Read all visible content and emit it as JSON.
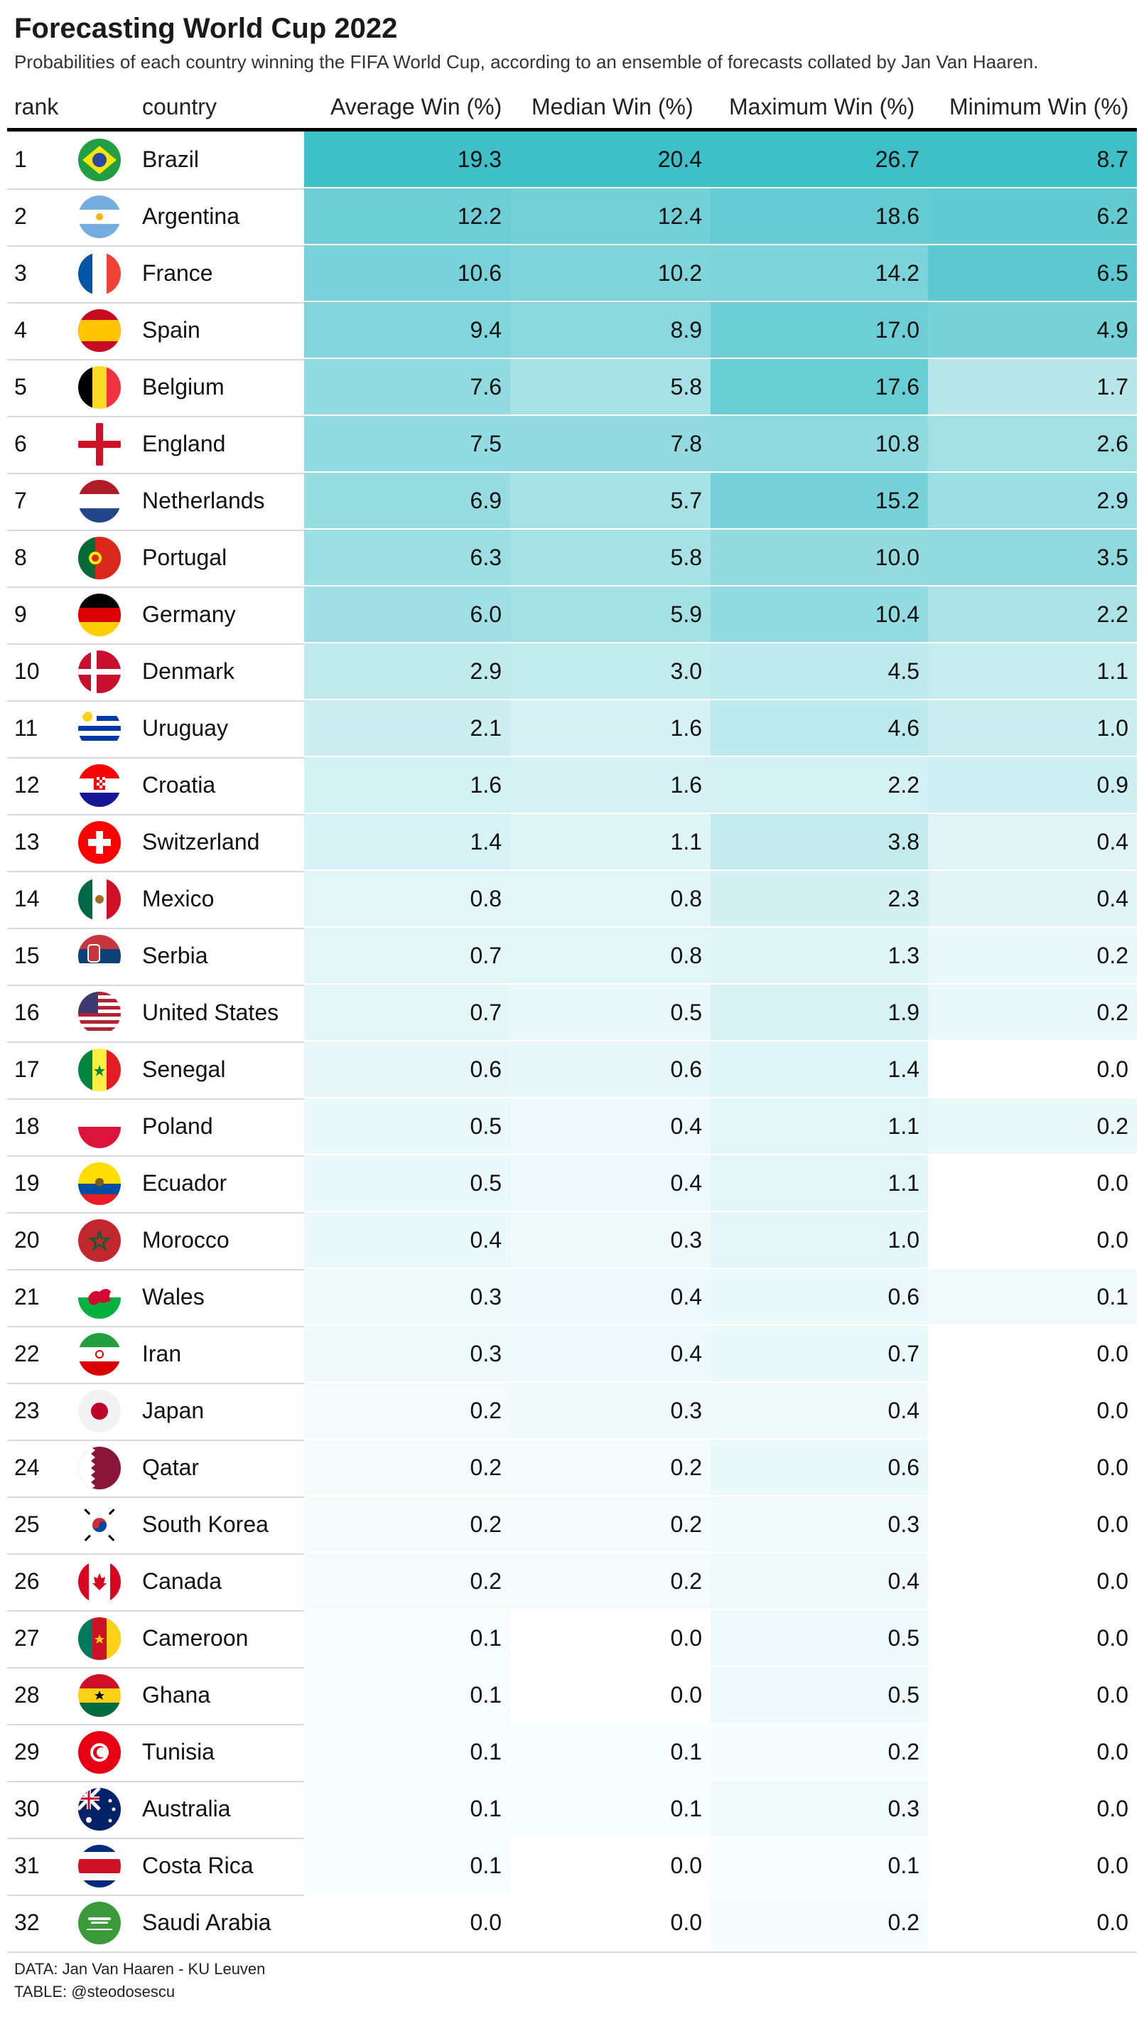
{
  "title": "Forecasting World Cup 2022",
  "subtitle": "Probabilities of each country winning the FIFA World Cup, according to an ensemble of forecasts collated by Jan Van Haaren.",
  "columns": {
    "rank": "rank",
    "country": "country",
    "avg": "Average Win (%)",
    "median": "Median Win (%)",
    "max": "Maximum Win (%)",
    "min": "Minimum Win (%)"
  },
  "footer": {
    "data": "DATA: Jan Van Haaren - KU Leuven",
    "table": "TABLE: @steodosescu"
  },
  "colors": {
    "high": "#3fbfc8",
    "low": "#ffffff",
    "rule": "#000000",
    "divider": "#d9d9d9"
  },
  "chart_data": {
    "type": "table",
    "title": "Forecasting World Cup 2022",
    "columns": [
      "rank",
      "country",
      "Average Win (%)",
      "Median Win (%)",
      "Maximum Win (%)",
      "Minimum Win (%)"
    ],
    "rows": [
      {
        "rank": "1",
        "country": "Brazil",
        "flag": "brazil-flag-icon",
        "avg": "19.3",
        "median": "20.4",
        "max": "26.7",
        "min": "8.7"
      },
      {
        "rank": "2",
        "country": "Argentina",
        "flag": "argentina-flag-icon",
        "avg": "12.2",
        "median": "12.4",
        "max": "18.6",
        "min": "6.2"
      },
      {
        "rank": "3",
        "country": "France",
        "flag": "france-flag-icon",
        "avg": "10.6",
        "median": "10.2",
        "max": "14.2",
        "min": "6.5"
      },
      {
        "rank": "4",
        "country": "Spain",
        "flag": "spain-flag-icon",
        "avg": "9.4",
        "median": "8.9",
        "max": "17.0",
        "min": "4.9"
      },
      {
        "rank": "5",
        "country": "Belgium",
        "flag": "belgium-flag-icon",
        "avg": "7.6",
        "median": "5.8",
        "max": "17.6",
        "min": "1.7"
      },
      {
        "rank": "6",
        "country": "England",
        "flag": "england-flag-icon",
        "avg": "7.5",
        "median": "7.8",
        "max": "10.8",
        "min": "2.6"
      },
      {
        "rank": "7",
        "country": "Netherlands",
        "flag": "netherlands-flag-icon",
        "avg": "6.9",
        "median": "5.7",
        "max": "15.2",
        "min": "2.9"
      },
      {
        "rank": "8",
        "country": "Portugal",
        "flag": "portugal-flag-icon",
        "avg": "6.3",
        "median": "5.8",
        "max": "10.0",
        "min": "3.5"
      },
      {
        "rank": "9",
        "country": "Germany",
        "flag": "germany-flag-icon",
        "avg": "6.0",
        "median": "5.9",
        "max": "10.4",
        "min": "2.2"
      },
      {
        "rank": "10",
        "country": "Denmark",
        "flag": "denmark-flag-icon",
        "avg": "2.9",
        "median": "3.0",
        "max": "4.5",
        "min": "1.1"
      },
      {
        "rank": "11",
        "country": "Uruguay",
        "flag": "uruguay-flag-icon",
        "avg": "2.1",
        "median": "1.6",
        "max": "4.6",
        "min": "1.0"
      },
      {
        "rank": "12",
        "country": "Croatia",
        "flag": "croatia-flag-icon",
        "avg": "1.6",
        "median": "1.6",
        "max": "2.2",
        "min": "0.9"
      },
      {
        "rank": "13",
        "country": "Switzerland",
        "flag": "switzerland-flag-icon",
        "avg": "1.4",
        "median": "1.1",
        "max": "3.8",
        "min": "0.4"
      },
      {
        "rank": "14",
        "country": "Mexico",
        "flag": "mexico-flag-icon",
        "avg": "0.8",
        "median": "0.8",
        "max": "2.3",
        "min": "0.4"
      },
      {
        "rank": "15",
        "country": "Serbia",
        "flag": "serbia-flag-icon",
        "avg": "0.7",
        "median": "0.8",
        "max": "1.3",
        "min": "0.2"
      },
      {
        "rank": "16",
        "country": "United States",
        "flag": "usa-flag-icon",
        "avg": "0.7",
        "median": "0.5",
        "max": "1.9",
        "min": "0.2"
      },
      {
        "rank": "17",
        "country": "Senegal",
        "flag": "senegal-flag-icon",
        "avg": "0.6",
        "median": "0.6",
        "max": "1.4",
        "min": "0.0"
      },
      {
        "rank": "18",
        "country": "Poland",
        "flag": "poland-flag-icon",
        "avg": "0.5",
        "median": "0.4",
        "max": "1.1",
        "min": "0.2"
      },
      {
        "rank": "19",
        "country": "Ecuador",
        "flag": "ecuador-flag-icon",
        "avg": "0.5",
        "median": "0.4",
        "max": "1.1",
        "min": "0.0"
      },
      {
        "rank": "20",
        "country": "Morocco",
        "flag": "morocco-flag-icon",
        "avg": "0.4",
        "median": "0.3",
        "max": "1.0",
        "min": "0.0"
      },
      {
        "rank": "21",
        "country": "Wales",
        "flag": "wales-flag-icon",
        "avg": "0.3",
        "median": "0.4",
        "max": "0.6",
        "min": "0.1"
      },
      {
        "rank": "22",
        "country": "Iran",
        "flag": "iran-flag-icon",
        "avg": "0.3",
        "median": "0.4",
        "max": "0.7",
        "min": "0.0"
      },
      {
        "rank": "23",
        "country": "Japan",
        "flag": "japan-flag-icon",
        "avg": "0.2",
        "median": "0.3",
        "max": "0.4",
        "min": "0.0"
      },
      {
        "rank": "24",
        "country": "Qatar",
        "flag": "qatar-flag-icon",
        "avg": "0.2",
        "median": "0.2",
        "max": "0.6",
        "min": "0.0"
      },
      {
        "rank": "25",
        "country": "South Korea",
        "flag": "south-korea-flag-icon",
        "avg": "0.2",
        "median": "0.2",
        "max": "0.3",
        "min": "0.0"
      },
      {
        "rank": "26",
        "country": "Canada",
        "flag": "canada-flag-icon",
        "avg": "0.2",
        "median": "0.2",
        "max": "0.4",
        "min": "0.0"
      },
      {
        "rank": "27",
        "country": "Cameroon",
        "flag": "cameroon-flag-icon",
        "avg": "0.1",
        "median": "0.0",
        "max": "0.5",
        "min": "0.0"
      },
      {
        "rank": "28",
        "country": "Ghana",
        "flag": "ghana-flag-icon",
        "avg": "0.1",
        "median": "0.0",
        "max": "0.5",
        "min": "0.0"
      },
      {
        "rank": "29",
        "country": "Tunisia",
        "flag": "tunisia-flag-icon",
        "avg": "0.1",
        "median": "0.1",
        "max": "0.2",
        "min": "0.0"
      },
      {
        "rank": "30",
        "country": "Australia",
        "flag": "australia-flag-icon",
        "avg": "0.1",
        "median": "0.1",
        "max": "0.3",
        "min": "0.0"
      },
      {
        "rank": "31",
        "country": "Costa Rica",
        "flag": "costa-rica-flag-icon",
        "avg": "0.1",
        "median": "0.0",
        "max": "0.1",
        "min": "0.0"
      },
      {
        "rank": "32",
        "country": "Saudi Arabia",
        "flag": "saudi-arabia-flag-icon",
        "avg": "0.0",
        "median": "0.0",
        "max": "0.2",
        "min": "0.0"
      }
    ]
  }
}
